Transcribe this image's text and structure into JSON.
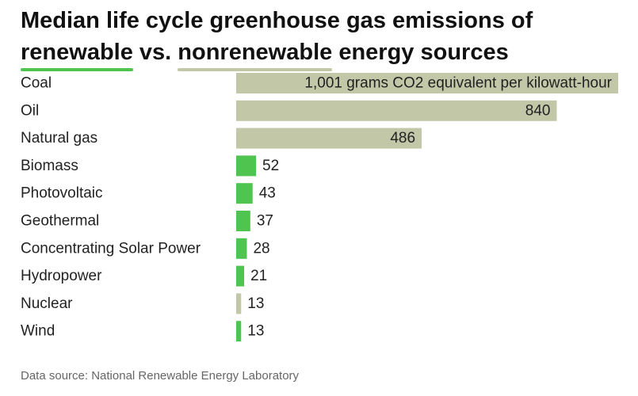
{
  "title": {
    "line1": "Median life cycle greenhouse gas emissions of",
    "renewable": "renewable",
    "vs": " vs. ",
    "nonrenewable": "nonrenewable",
    "rest": " energy sources"
  },
  "source": "Data source: National Renewable Energy Laboratory",
  "colors": {
    "renewable": "#4fc44f",
    "nonrenewable": "#c2c7a8",
    "label": "#222222"
  },
  "chart_data": {
    "type": "bar",
    "orientation": "horizontal",
    "categories": [
      "Coal",
      "Oil",
      "Natural gas",
      "Biomass",
      "Photovoltaic",
      "Geothermal",
      "Concentrating Solar Power",
      "Hydropower",
      "Nuclear",
      "Wind"
    ],
    "values": [
      1001,
      840,
      486,
      52,
      43,
      37,
      28,
      21,
      13,
      13
    ],
    "value_labels": [
      "1,001 grams CO2 equivalent per kilowatt-hour",
      "840",
      "486",
      "52",
      "43",
      "37",
      "28",
      "21",
      "13",
      "13"
    ],
    "groups": [
      "nonrenewable",
      "nonrenewable",
      "nonrenewable",
      "renewable",
      "renewable",
      "renewable",
      "renewable",
      "renewable",
      "nonrenewable",
      "renewable"
    ],
    "xlim": [
      0,
      1001
    ],
    "grid": false,
    "legend": "title-underline"
  }
}
